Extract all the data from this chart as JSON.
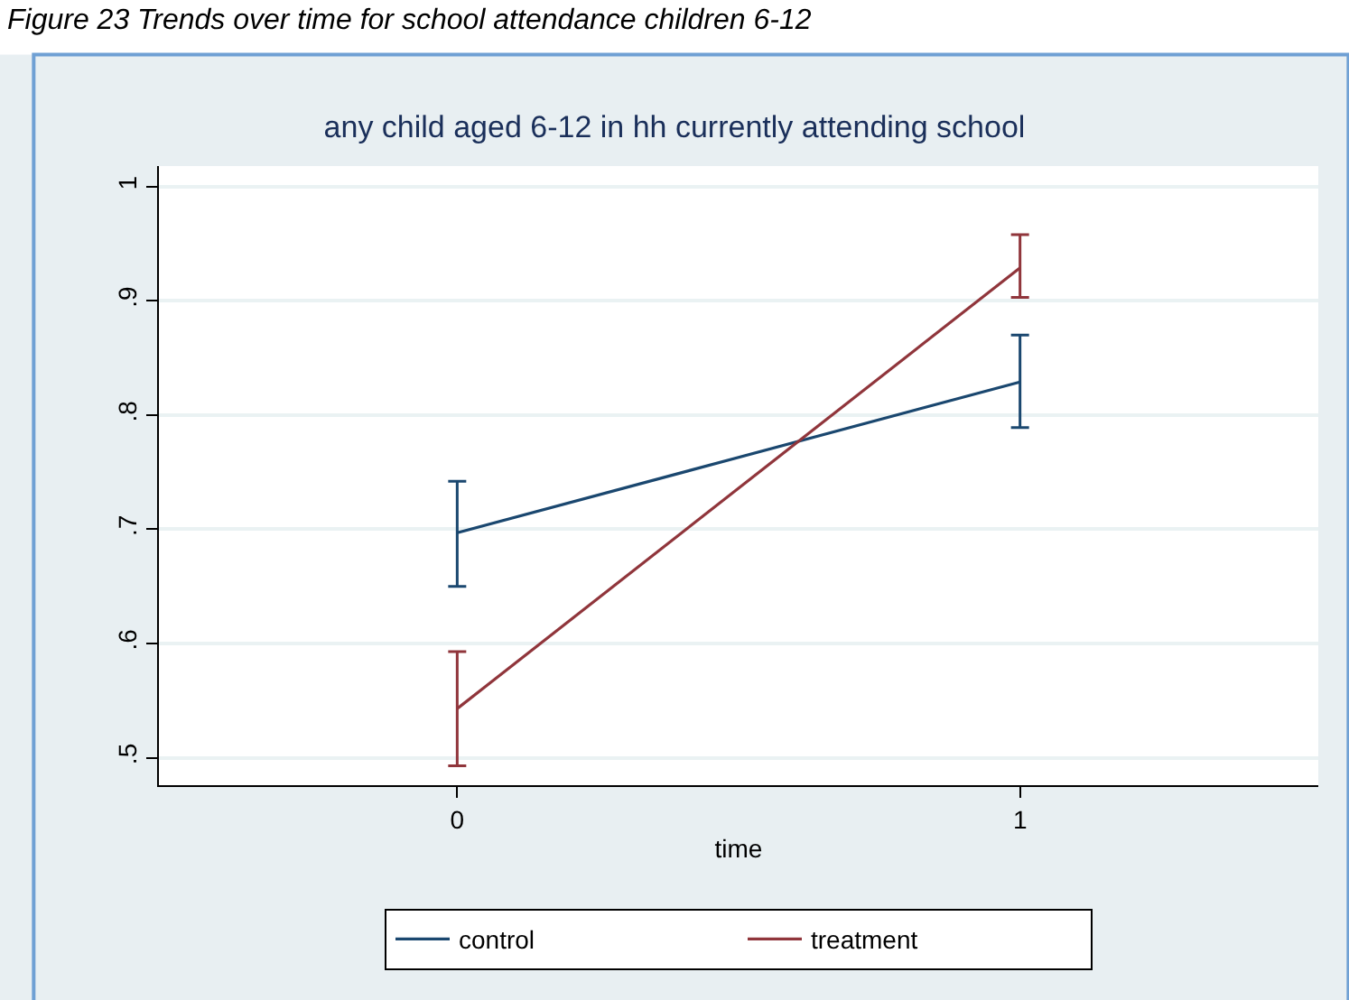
{
  "chart_data": {
    "type": "line",
    "title": "any child aged 6-12 in hh currently attending school",
    "xlabel": "time",
    "annotations": [
      "Figure 23 Trends over time for school attendance children 6-12"
    ],
    "x": [
      0,
      1
    ],
    "series": [
      {
        "name": "control",
        "color": "#1a476f",
        "values": [
          0.697,
          0.829
        ],
        "errors": [
          [
            0.65,
            0.742
          ],
          [
            0.789,
            0.87
          ]
        ]
      },
      {
        "name": "treatment",
        "color": "#90353b",
        "values": [
          0.543,
          0.929
        ],
        "errors": [
          [
            0.493,
            0.593
          ],
          [
            0.903,
            0.958
          ]
        ]
      }
    ],
    "xlim": [
      -0.53,
      1.53
    ],
    "xticks": [
      0,
      1
    ],
    "ylim": [
      0.476,
      1.018
    ],
    "yticks": [
      {
        "value": 0.5,
        "label": ".5"
      },
      {
        "value": 0.6,
        "label": ".6"
      },
      {
        "value": 0.7,
        "label": ".7"
      },
      {
        "value": 0.8,
        "label": ".8"
      },
      {
        "value": 0.9,
        "label": ".9"
      },
      1
    ],
    "grid": "y",
    "legend": "bottom",
    "marker": "none",
    "line_style": "solid"
  }
}
